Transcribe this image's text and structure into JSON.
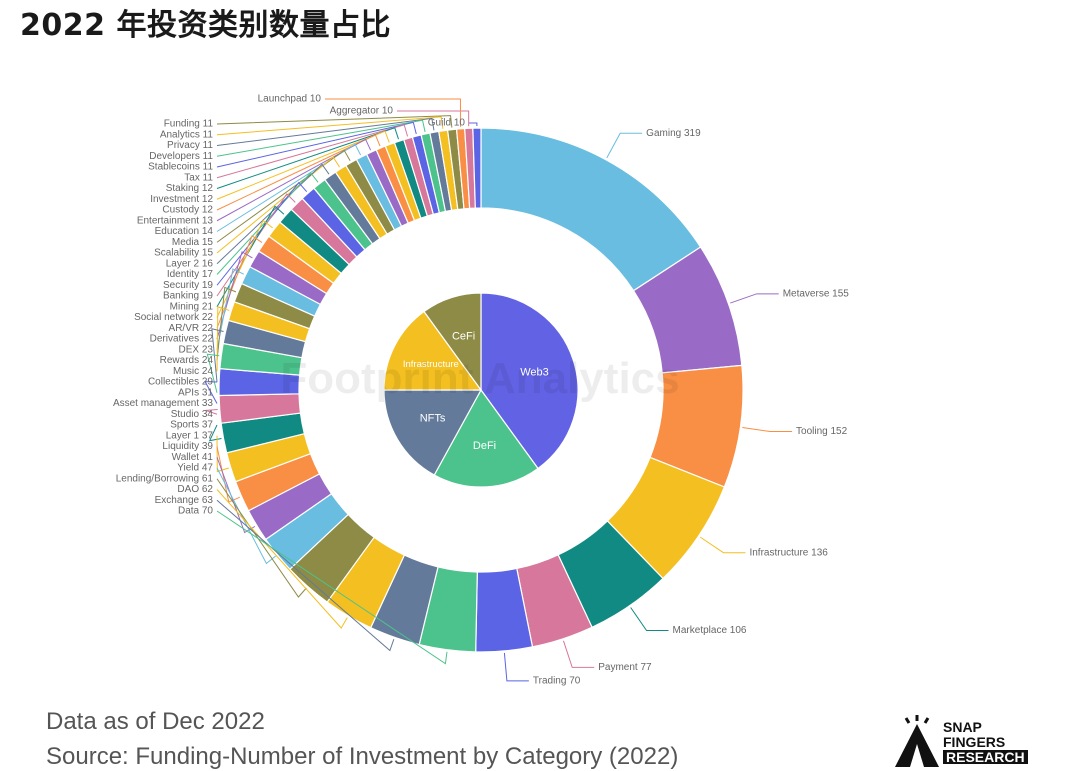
{
  "title": "2022 年投资类别数量占比",
  "watermark": "Footprint Analytics",
  "footer": {
    "data_note": "Data as of Dec 2022",
    "source": "Source: Funding-Number of Investment by Category (2022)"
  },
  "logo": {
    "line1": "SNAP",
    "line2": "FINGERS",
    "line3": "RESEARCH"
  },
  "chart_data": [
    {
      "type": "pie",
      "ring": "inner",
      "slices": [
        {
          "label": "Web3",
          "value": 40,
          "color": "#6262e4"
        },
        {
          "label": "DeFi",
          "value": 18,
          "color": "#4cc38c"
        },
        {
          "label": "NFTs",
          "value": 17,
          "color": "#647a9a"
        },
        {
          "label": "Infrastructure",
          "value": 15,
          "color": "#f4bf21"
        },
        {
          "label": "CeFi",
          "value": 10,
          "color": "#8d8b45"
        }
      ]
    },
    {
      "type": "pie",
      "ring": "outer",
      "slices": [
        {
          "label": "Gaming 319",
          "value": 319,
          "color": "#68bde0"
        },
        {
          "label": "Metaverse 155",
          "value": 155,
          "color": "#9a6bc6"
        },
        {
          "label": "Tooling 152",
          "value": 152,
          "color": "#f98e45"
        },
        {
          "label": "Infrastructure 136",
          "value": 136,
          "color": "#f4bf21"
        },
        {
          "label": "Marketplace 106",
          "value": 106,
          "color": "#108a82"
        },
        {
          "label": "Payment 77",
          "value": 77,
          "color": "#d8779c"
        },
        {
          "label": "Trading 70",
          "value": 70,
          "color": "#5a64e4"
        },
        {
          "label": "Data 70",
          "value": 70,
          "color": "#4cc38c"
        },
        {
          "label": "Exchange 63",
          "value": 63,
          "color": "#647a9a"
        },
        {
          "label": "DAO 62",
          "value": 62,
          "color": "#f4bf21"
        },
        {
          "label": "Lending/Borrowing 61",
          "value": 61,
          "color": "#8d8b45"
        },
        {
          "label": "Yield 47",
          "value": 47,
          "color": "#68bde0"
        },
        {
          "label": "Wallet 41",
          "value": 41,
          "color": "#9a6bc6"
        },
        {
          "label": "Liquidity 39",
          "value": 39,
          "color": "#f98e45"
        },
        {
          "label": "Layer 1 37",
          "value": 37,
          "color": "#f4bf21"
        },
        {
          "label": "Sports 37",
          "value": 37,
          "color": "#108a82"
        },
        {
          "label": "Studio 34",
          "value": 34,
          "color": "#d8779c"
        },
        {
          "label": "Asset management 33",
          "value": 33,
          "color": "#5a64e4"
        },
        {
          "label": "APIs 31",
          "value": 31,
          "color": "#4cc38c"
        },
        {
          "label": "Collectibles 29",
          "value": 29,
          "color": "#647a9a"
        },
        {
          "label": "Music 24",
          "value": 24,
          "color": "#f4bf21"
        },
        {
          "label": "Rewards 24",
          "value": 24,
          "color": "#8d8b45"
        },
        {
          "label": "DEX 23",
          "value": 23,
          "color": "#68bde0"
        },
        {
          "label": "Derivatives 22",
          "value": 22,
          "color": "#9a6bc6"
        },
        {
          "label": "AR/VR 22",
          "value": 22,
          "color": "#f98e45"
        },
        {
          "label": "Social network 22",
          "value": 22,
          "color": "#f4bf21"
        },
        {
          "label": "Mining 21",
          "value": 21,
          "color": "#108a82"
        },
        {
          "label": "Banking 19",
          "value": 19,
          "color": "#d8779c"
        },
        {
          "label": "Security 19",
          "value": 19,
          "color": "#5a64e4"
        },
        {
          "label": "Identity 17",
          "value": 17,
          "color": "#4cc38c"
        },
        {
          "label": "Layer 2 16",
          "value": 16,
          "color": "#647a9a"
        },
        {
          "label": "Scalability 15",
          "value": 15,
          "color": "#f4bf21"
        },
        {
          "label": "Media 15",
          "value": 15,
          "color": "#8d8b45"
        },
        {
          "label": "Education 14",
          "value": 14,
          "color": "#68bde0"
        },
        {
          "label": "Entertainment 13",
          "value": 13,
          "color": "#9a6bc6"
        },
        {
          "label": "Custody 12",
          "value": 12,
          "color": "#f98e45"
        },
        {
          "label": "Investment 12",
          "value": 12,
          "color": "#f4bf21"
        },
        {
          "label": "Staking 12",
          "value": 12,
          "color": "#108a82"
        },
        {
          "label": "Tax 11",
          "value": 11,
          "color": "#d8779c"
        },
        {
          "label": "Stablecoins 11",
          "value": 11,
          "color": "#5a64e4"
        },
        {
          "label": "Developers 11",
          "value": 11,
          "color": "#4cc38c"
        },
        {
          "label": "Privacy 11",
          "value": 11,
          "color": "#647a9a"
        },
        {
          "label": "Analytics 11",
          "value": 11,
          "color": "#f4bf21"
        },
        {
          "label": "Funding 11",
          "value": 11,
          "color": "#8d8b45"
        },
        {
          "label": "Launchpad 10",
          "value": 10,
          "color": "#f98e45"
        },
        {
          "label": "Aggregator 10",
          "value": 10,
          "color": "#d8779c"
        },
        {
          "label": "Guild 10",
          "value": 10,
          "color": "#5a64e4"
        }
      ]
    }
  ]
}
